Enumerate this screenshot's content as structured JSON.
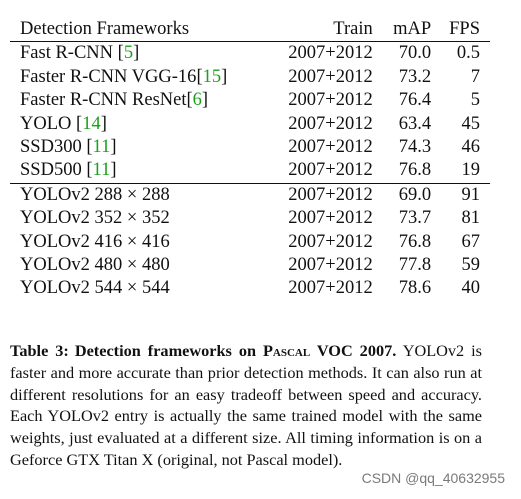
{
  "table": {
    "headers": [
      "Detection Frameworks",
      "Train",
      "mAP",
      "FPS"
    ],
    "group1": [
      {
        "name": "Fast R-CNN ",
        "ref": "5",
        "train": "2007+2012",
        "map": "70.0",
        "fps": "0.5"
      },
      {
        "name": "Faster R-CNN VGG-16",
        "ref": "15",
        "train": "2007+2012",
        "map": "73.2",
        "fps": "7"
      },
      {
        "name": "Faster R-CNN ResNet",
        "ref": "6",
        "train": "2007+2012",
        "map": "76.4",
        "fps": "5"
      },
      {
        "name": "YOLO ",
        "ref": "14",
        "train": "2007+2012",
        "map": "63.4",
        "fps": "45"
      },
      {
        "name": "SSD300 ",
        "ref": "11",
        "train": "2007+2012",
        "map": "74.3",
        "fps": "46"
      },
      {
        "name": "SSD500 ",
        "ref": "11",
        "train": "2007+2012",
        "map": "76.8",
        "fps": "19"
      }
    ],
    "group2": [
      {
        "name": "YOLOv2 288 × 288",
        "train": "2007+2012",
        "map": "69.0",
        "fps": "91"
      },
      {
        "name": "YOLOv2 352 × 352",
        "train": "2007+2012",
        "map": "73.7",
        "fps": "81"
      },
      {
        "name": "YOLOv2 416 × 416",
        "train": "2007+2012",
        "map": "76.8",
        "fps": "67"
      },
      {
        "name": "YOLOv2 480 × 480",
        "train": "2007+2012",
        "map": "77.8",
        "fps": "59"
      },
      {
        "name": "YOLOv2 544 × 544",
        "train": "2007+2012",
        "map": "78.6",
        "fps": "40",
        "bold_map": true
      }
    ]
  },
  "caption": {
    "label": "Table 3:",
    "title_a": "Detection frameworks on ",
    "title_sc": "Pascal",
    "title_b": " VOC 2007.",
    "body": "YOLOv2 is faster and more accurate than prior detection meth­ods. It can also run at different resolutions for an easy tradeoff between speed and accuracy. Each YOLOv2 entry is actually the same trained model with the same weights, just evaluated at a dif­ferent size. All timing information is on a Geforce GTX Titan X (original, not Pascal model)."
  },
  "watermark": "CSDN @qq_40632955"
}
